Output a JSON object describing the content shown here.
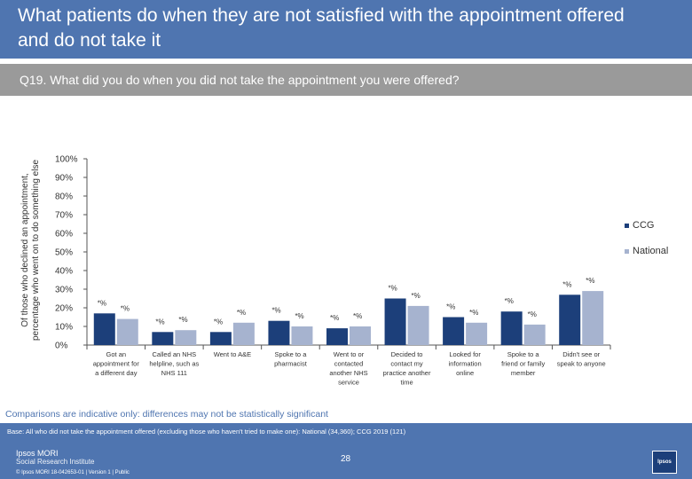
{
  "header": {
    "title": "What patients do when they are not satisfied with the appointment offered and do not take it",
    "question": "Q19. What did you do when you did not take the appointment you were offered?"
  },
  "colors": {
    "ccg": "#1c3f7a",
    "national": "#a6b3cf",
    "brand": "#4f75b0",
    "axis": "#555555"
  },
  "chart_data": {
    "type": "bar",
    "ylabel": "Of those who declined an appointment, percentage who went on to do something else",
    "ylim": [
      0,
      100
    ],
    "yticks": [
      "0%",
      "10%",
      "20%",
      "30%",
      "40%",
      "50%",
      "60%",
      "70%",
      "80%",
      "90%",
      "100%"
    ],
    "categories": [
      [
        "Got an",
        "appointment for",
        "a different day"
      ],
      [
        "Called an NHS",
        "helpline, such as",
        "NHS 111"
      ],
      [
        "Went to A&E"
      ],
      [
        "Spoke to a",
        "pharmacist"
      ],
      [
        "Went to or",
        "contacted",
        "another NHS",
        "service"
      ],
      [
        "Decided to",
        "contact my",
        "practice another",
        "time"
      ],
      [
        "Looked for",
        "information",
        "online"
      ],
      [
        "Spoke to a",
        "friend or family",
        "member"
      ],
      [
        "Didn't see or",
        "speak to anyone"
      ]
    ],
    "series": [
      {
        "name": "CCG",
        "values": [
          17,
          7,
          7,
          13,
          9,
          25,
          15,
          18,
          27
        ],
        "labels": [
          "*%",
          "*%",
          "*%",
          "*%",
          "*%",
          "*%",
          "*%",
          "*%",
          "*%"
        ]
      },
      {
        "name": "National",
        "values": [
          14,
          8,
          12,
          10,
          10,
          21,
          12,
          11,
          29
        ],
        "labels": [
          "*%",
          "*%",
          "*%",
          "*%",
          "*%",
          "*%",
          "*%",
          "*%",
          "*%"
        ]
      }
    ],
    "legend_position": "right"
  },
  "footer": {
    "caveat": "Comparisons are indicative only: differences may not be statistically significant",
    "base": "Base: All who did not take the appointment offered (excluding those who haven't tried to make one): National (34,360); CCG 2019 (121)",
    "page_number": "28",
    "logo_line1": "Ipsos MORI",
    "logo_line2": "Social Research Institute",
    "small_print": "© Ipsos MORI      18-042653-01 | Version 1 | Public",
    "brand_box": "Ipsos"
  }
}
